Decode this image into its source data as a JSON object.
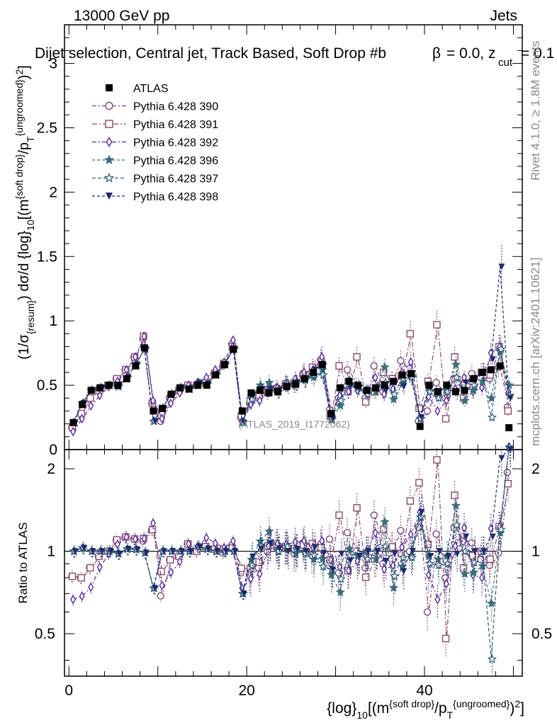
{
  "header": {
    "energy": "13000 GeV pp",
    "process": "Jets",
    "title": "Dijet selection, Central jet, Track Based, Soft Drop #b",
    "params": "= 0.0, z",
    "params_sub": "cut",
    "params_val": "= 0.1",
    "beta_symbol": "β"
  },
  "side": {
    "rivet": "Rivet 4.1.0, ≥ 1.8M events",
    "mcplots": "mcplots.cern.ch [arXiv:2401.10621]"
  },
  "watermark": "(ATLAS_2019_I1772062)",
  "axes": {
    "main_ylabel": "(1/σ{resum}) dσ/d {log}10[(m{soft drop}/pT{ungroomed})2]",
    "ratio_ylabel": "Ratio to ATLAS",
    "xlabel": "{log}10[(m{soft drop}/pT{ungroomed})2]"
  },
  "chart_data": {
    "type": "scatter",
    "x": [
      0.5,
      1.5,
      2.5,
      3.5,
      4.5,
      5.5,
      6.5,
      7.5,
      8.5,
      9.5,
      10.5,
      11.5,
      12.5,
      13.5,
      14.5,
      15.5,
      16.5,
      17.5,
      18.5,
      19.5,
      20.5,
      21.5,
      22.5,
      23.5,
      24.5,
      25.5,
      26.5,
      27.5,
      28.5,
      29.5,
      30.5,
      31.5,
      32.5,
      33.5,
      34.5,
      35.5,
      36.5,
      37.5,
      38.5,
      39.5,
      40.5,
      41.5,
      42.5,
      43.5,
      44.5,
      45.5,
      46.5,
      47.5,
      48.5,
      49.5
    ],
    "xlim": [
      -0.5,
      51
    ],
    "ylim": [
      0,
      3.3
    ],
    "ratio_ylim": [
      0.35,
      2.35
    ],
    "x_ticks": [
      0,
      20,
      40
    ],
    "y_ticks": [
      0,
      0.5,
      1,
      1.5,
      2,
      2.5,
      3
    ],
    "y_tick_labels": [
      "0",
      "0.5",
      "1",
      "1.5",
      "2",
      "2.5",
      "3"
    ],
    "ratio_ticks": [
      0.5,
      1,
      2
    ],
    "ratio_tick_labels": [
      "0.5",
      "1",
      "2"
    ],
    "legend_position": "top-left",
    "reference": {
      "name": "ATLAS",
      "color": "#000000",
      "values": [
        0.21,
        0.35,
        0.46,
        0.48,
        0.5,
        0.5,
        0.55,
        0.65,
        0.79,
        0.3,
        0.32,
        0.43,
        0.48,
        0.47,
        0.5,
        0.5,
        0.58,
        0.66,
        0.78,
        0.3,
        0.44,
        0.46,
        0.44,
        0.45,
        0.49,
        0.51,
        0.55,
        0.6,
        0.66,
        0.28,
        0.48,
        0.53,
        0.5,
        0.46,
        0.48,
        0.5,
        0.53,
        0.58,
        0.59,
        0.18,
        0.5,
        0.45,
        0.5,
        0.45,
        0.46,
        0.55,
        0.6,
        0.62,
        0.65,
        0.17
      ]
    },
    "series": [
      {
        "name": "Pythia 6.428 390",
        "color": "#7B4A7A",
        "marker": "circle-open",
        "dash": "6,3,2,3",
        "values": [
          0.17,
          0.28,
          0.4,
          0.46,
          0.5,
          0.55,
          0.62,
          0.72,
          0.86,
          0.36,
          0.22,
          0.4,
          0.46,
          0.5,
          0.5,
          0.52,
          0.59,
          0.65,
          0.82,
          0.25,
          0.36,
          0.4,
          0.44,
          0.48,
          0.51,
          0.5,
          0.59,
          0.58,
          0.7,
          0.31,
          0.4,
          0.62,
          0.5,
          0.4,
          0.65,
          0.45,
          0.55,
          0.69,
          0.59,
          0.22,
          0.3,
          0.52,
          0.4,
          0.55,
          0.5,
          0.59,
          0.56,
          0.55,
          0.64,
          0.33
        ]
      },
      {
        "name": "Pythia 6.428 391",
        "color": "#8A4B6A",
        "marker": "square-open",
        "dash": "7,3,2,3",
        "values": [
          0.17,
          0.28,
          0.4,
          0.46,
          0.5,
          0.55,
          0.62,
          0.72,
          0.88,
          0.36,
          0.27,
          0.4,
          0.46,
          0.5,
          0.5,
          0.52,
          0.59,
          0.67,
          0.8,
          0.26,
          0.38,
          0.42,
          0.46,
          0.47,
          0.51,
          0.52,
          0.58,
          0.64,
          0.68,
          0.26,
          0.65,
          0.45,
          0.72,
          0.37,
          0.45,
          0.6,
          0.55,
          0.57,
          0.9,
          0.32,
          0.53,
          0.97,
          0.24,
          0.72,
          0.4,
          0.53,
          0.6,
          0.58,
          0.8,
          0.3
        ]
      },
      {
        "name": "Pythia 6.428 392",
        "color": "#5A2A9A",
        "marker": "diamond-open",
        "dash": "6,3,2,3",
        "values": [
          0.14,
          0.24,
          0.34,
          0.42,
          0.49,
          0.53,
          0.62,
          0.72,
          0.88,
          0.38,
          0.24,
          0.36,
          0.44,
          0.5,
          0.52,
          0.56,
          0.62,
          0.68,
          0.85,
          0.22,
          0.35,
          0.38,
          0.46,
          0.48,
          0.52,
          0.55,
          0.6,
          0.62,
          0.72,
          0.26,
          0.42,
          0.45,
          0.46,
          0.46,
          0.56,
          0.43,
          0.47,
          0.6,
          0.68,
          0.25,
          0.41,
          0.3,
          0.38,
          0.47,
          0.56,
          0.45,
          0.48,
          0.75,
          0.8,
          0.45
        ]
      },
      {
        "name": "Pythia 6.428 396",
        "color": "#3E6E7A",
        "marker": "star-filled",
        "dash": "4,3",
        "values": [
          0.21,
          0.36,
          0.46,
          0.48,
          0.5,
          0.49,
          0.56,
          0.66,
          0.78,
          0.22,
          0.32,
          0.43,
          0.48,
          0.47,
          0.52,
          0.51,
          0.58,
          0.66,
          0.78,
          0.21,
          0.41,
          0.5,
          0.52,
          0.45,
          0.51,
          0.5,
          0.55,
          0.56,
          0.62,
          0.23,
          0.34,
          0.54,
          0.48,
          0.46,
          0.45,
          0.64,
          0.39,
          0.51,
          0.57,
          0.24,
          0.48,
          0.42,
          0.48,
          0.66,
          0.38,
          0.46,
          0.53,
          0.4,
          0.76,
          0.5
        ]
      },
      {
        "name": "Pythia 6.428 397",
        "color": "#2E5A7A",
        "marker": "star-open",
        "dash": "5,3",
        "values": [
          0.21,
          0.36,
          0.46,
          0.48,
          0.5,
          0.49,
          0.56,
          0.66,
          0.78,
          0.22,
          0.32,
          0.43,
          0.48,
          0.47,
          0.52,
          0.51,
          0.58,
          0.66,
          0.78,
          0.21,
          0.39,
          0.48,
          0.48,
          0.45,
          0.51,
          0.52,
          0.54,
          0.58,
          0.58,
          0.24,
          0.38,
          0.51,
          0.49,
          0.43,
          0.48,
          0.52,
          0.43,
          0.55,
          0.56,
          0.24,
          0.45,
          0.4,
          0.45,
          0.56,
          0.46,
          0.5,
          0.6,
          0.25,
          0.78,
          0.42
        ]
      },
      {
        "name": "Pythia 6.428 398",
        "color": "#1E2A6A",
        "marker": "triangle-down-filled",
        "dash": "4,3",
        "values": [
          0.21,
          0.36,
          0.46,
          0.48,
          0.5,
          0.49,
          0.56,
          0.66,
          0.78,
          0.22,
          0.32,
          0.43,
          0.48,
          0.47,
          0.52,
          0.51,
          0.58,
          0.66,
          0.78,
          0.21,
          0.42,
          0.47,
          0.47,
          0.46,
          0.49,
          0.52,
          0.55,
          0.62,
          0.65,
          0.24,
          0.47,
          0.49,
          0.48,
          0.46,
          0.48,
          0.46,
          0.52,
          0.49,
          0.59,
          0.25,
          0.48,
          0.45,
          0.48,
          0.44,
          0.52,
          0.55,
          0.6,
          0.7,
          1.42,
          0.4
        ]
      }
    ]
  }
}
